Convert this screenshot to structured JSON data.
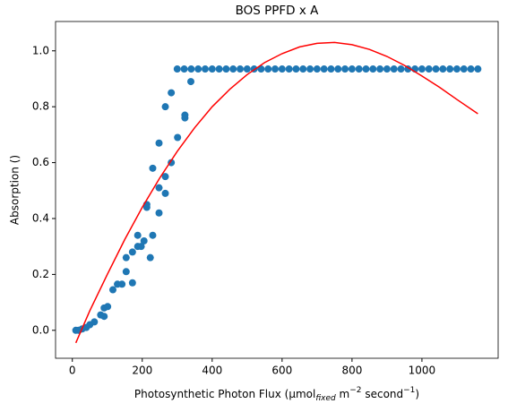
{
  "chart_data": {
    "type": "scatter",
    "title": "BOS PPFD x A",
    "xlabel_parts": [
      "Photosynthetic Photon Flux (µmol",
      "fixed",
      " m",
      "−2",
      " second",
      "−1",
      ")"
    ],
    "ylabel": "Absorption ()",
    "xlim": [
      -48,
      1218
    ],
    "ylim": [
      -0.1,
      1.105
    ],
    "xticks": [
      0,
      200,
      400,
      600,
      800,
      1000
    ],
    "yticks": [
      {
        "value": 0,
        "label": "0.0"
      },
      0.2,
      0.4,
      0.6,
      0.8,
      {
        "value": 1,
        "label": "1.0"
      }
    ],
    "series": [
      {
        "type": "scatter",
        "color": "#1f77b4",
        "x": [
          10,
          18,
          28,
          40,
          50,
          63,
          81,
          91,
          91,
          101,
          116,
          129,
          142,
          154,
          154,
          172,
          172,
          187,
          187,
          197,
          205,
          213,
          213,
          223,
          230,
          230,
          248,
          248,
          248,
          266,
          266,
          266,
          283,
          283,
          301,
          322,
          322,
          339,
          300,
          320,
          340,
          360,
          380,
          400,
          420,
          440,
          460,
          480,
          500,
          520,
          540,
          560,
          580,
          600,
          620,
          640,
          660,
          680,
          700,
          720,
          740,
          760,
          780,
          800,
          820,
          840,
          860,
          880,
          900,
          920,
          940,
          960,
          980,
          1000,
          1020,
          1040,
          1060,
          1080,
          1100,
          1120,
          1140,
          1160
        ],
        "values": [
          0,
          0,
          0.005,
          0.01,
          0.02,
          0.03,
          0.055,
          0.05,
          0.08,
          0.085,
          0.145,
          0.165,
          0.165,
          0.26,
          0.21,
          0.28,
          0.17,
          0.34,
          0.3,
          0.3,
          0.32,
          0.45,
          0.44,
          0.26,
          0.58,
          0.34,
          0.67,
          0.42,
          0.51,
          0.8,
          0.49,
          0.55,
          0.85,
          0.6,
          0.69,
          0.76,
          0.77,
          0.89,
          0.935,
          0.935,
          0.935,
          0.935,
          0.935,
          0.935,
          0.935,
          0.935,
          0.935,
          0.935,
          0.935,
          0.935,
          0.935,
          0.935,
          0.935,
          0.935,
          0.935,
          0.935,
          0.935,
          0.935,
          0.935,
          0.935,
          0.935,
          0.935,
          0.935,
          0.935,
          0.935,
          0.935,
          0.935,
          0.935,
          0.935,
          0.935,
          0.935,
          0.935,
          0.935,
          0.935,
          0.935,
          0.935,
          0.935,
          0.935,
          0.935,
          0.935,
          0.935,
          0.935
        ]
      },
      {
        "type": "line",
        "color": "red",
        "x": [
          10,
          50,
          100,
          150,
          200,
          250,
          300,
          350,
          400,
          450,
          500,
          550,
          600,
          650,
          700,
          750,
          800,
          850,
          900,
          950,
          1000,
          1050,
          1100,
          1160
        ],
        "values": [
          -0.045,
          0.07,
          0.2,
          0.325,
          0.44,
          0.545,
          0.64,
          0.725,
          0.8,
          0.862,
          0.915,
          0.958,
          0.99,
          1.014,
          1.027,
          1.03,
          1.022,
          1.005,
          0.98,
          0.948,
          0.91,
          0.87,
          0.826,
          0.775
        ]
      }
    ]
  }
}
